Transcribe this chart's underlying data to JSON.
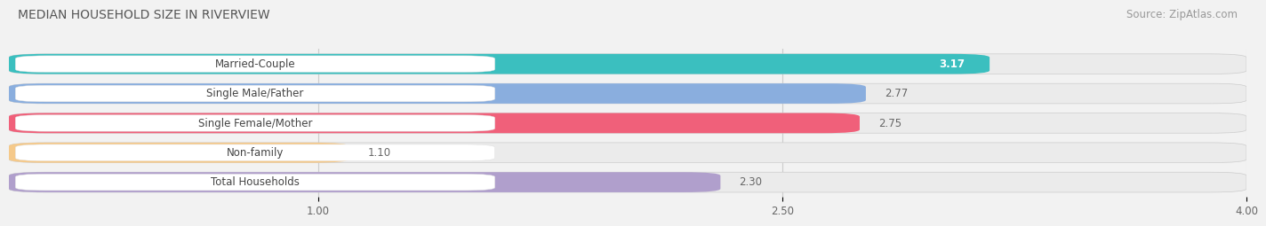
{
  "title": "MEDIAN HOUSEHOLD SIZE IN RIVERVIEW",
  "source": "Source: ZipAtlas.com",
  "categories": [
    "Married-Couple",
    "Single Male/Father",
    "Single Female/Mother",
    "Non-family",
    "Total Households"
  ],
  "values": [
    3.17,
    2.77,
    2.75,
    1.1,
    2.3
  ],
  "bar_colors": [
    "#3bbfbf",
    "#8aaede",
    "#f0607a",
    "#f5c98a",
    "#b09fcc"
  ],
  "bar_labels": [
    "3.17",
    "2.77",
    "2.75",
    "1.10",
    "2.30"
  ],
  "label_text_colors": [
    "#555555",
    "#555555",
    "#555555",
    "#555555",
    "#555555"
  ],
  "value_inside": [
    true,
    false,
    false,
    false,
    false
  ],
  "value_colors": [
    "#ffffff",
    "#666666",
    "#666666",
    "#666666",
    "#666666"
  ],
  "xmin": 0.0,
  "xmax": 4.0,
  "xticks": [
    1.0,
    2.5,
    4.0
  ],
  "xtick_labels": [
    "1.00",
    "2.50",
    "4.00"
  ],
  "background_color": "#f2f2f2",
  "bar_bg_color": "#e0e0e0",
  "bar_bg_color2": "#ffffff",
  "title_fontsize": 10,
  "source_fontsize": 8.5,
  "label_fontsize": 8.5,
  "value_fontsize": 8.5,
  "tick_fontsize": 8.5,
  "bar_height": 0.68,
  "bar_gap": 0.18
}
